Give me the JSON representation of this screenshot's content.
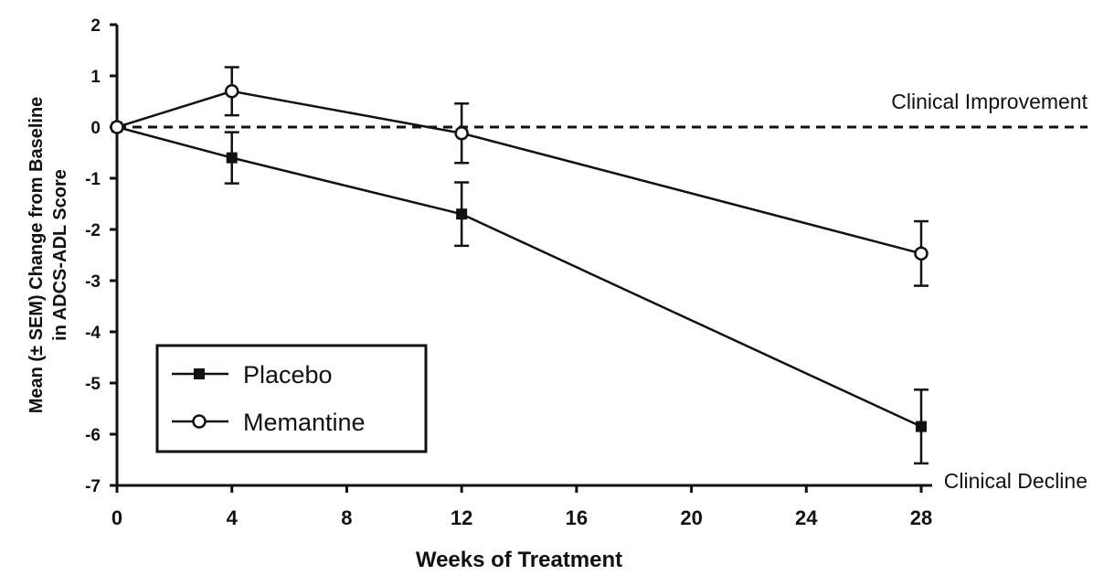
{
  "chart_data": {
    "type": "line",
    "xlabel": "Weeks of Treatment",
    "ylabel_lines": [
      "Mean (± SEM) Change from Baseline",
      "in ADCS-ADL Score"
    ],
    "xlim": [
      0,
      28
    ],
    "ylim": [
      -7,
      2
    ],
    "x_ticks": [
      "0",
      "4",
      "8",
      "12",
      "16",
      "20",
      "24",
      "28"
    ],
    "y_ticks": [
      "2",
      "1",
      "0",
      "-1",
      "-2",
      "-3",
      "-4",
      "-5",
      "-6",
      "-7"
    ],
    "grid": false,
    "legend_position": "bottom-left",
    "reference_line": {
      "y": 0,
      "style": "dashed"
    },
    "annotations": {
      "improvement": "Clinical Improvement",
      "decline": "Clinical Decline"
    },
    "series": [
      {
        "name": "Placebo",
        "marker": "filled-square",
        "x": [
          0,
          4,
          12,
          28
        ],
        "y": [
          0,
          -0.6,
          -1.7,
          -5.85
        ],
        "err": [
          0,
          0.5,
          0.62,
          0.72
        ]
      },
      {
        "name": "Memantine",
        "marker": "open-circle",
        "x": [
          0,
          4,
          12,
          28
        ],
        "y": [
          0,
          0.7,
          -0.12,
          -2.47
        ],
        "err": [
          0,
          0.47,
          0.58,
          0.63
        ]
      }
    ]
  }
}
